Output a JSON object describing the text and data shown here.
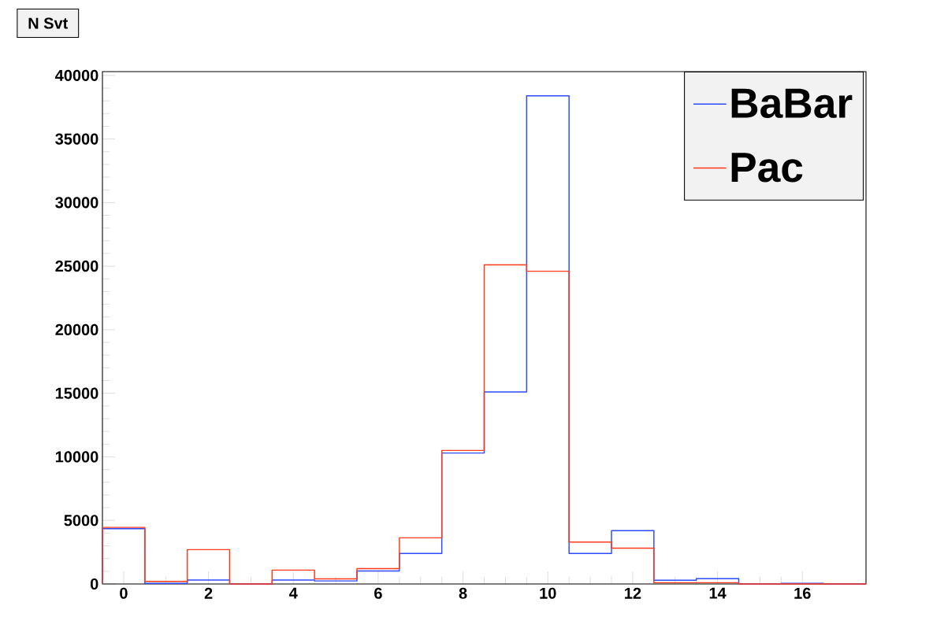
{
  "chart_data": {
    "type": "histogram",
    "title": "N Svt",
    "bins": [
      -0.5,
      0.5,
      1.5,
      2.5,
      3.5,
      4.5,
      5.5,
      6.5,
      7.5,
      8.5,
      9.5,
      10.5,
      11.5,
      12.5,
      13.5,
      14.5,
      15.5,
      16.5,
      17.5
    ],
    "series": [
      {
        "name": "BaBar",
        "color": "#2b4cff",
        "values": [
          4350,
          50,
          310,
          0,
          310,
          240,
          1020,
          2400,
          10300,
          15100,
          38400,
          2400,
          4200,
          300,
          420,
          0,
          50,
          0
        ]
      },
      {
        "name": "Pac",
        "color": "#ff3a1a",
        "values": [
          4450,
          200,
          2700,
          0,
          1090,
          400,
          1210,
          3630,
          10500,
          25100,
          24600,
          3290,
          2820,
          100,
          100,
          0,
          0,
          0
        ]
      }
    ],
    "xlim": [
      -0.5,
      17.5
    ],
    "xticks": [
      0,
      2,
      4,
      6,
      8,
      10,
      12,
      14,
      16
    ],
    "ylim": [
      0,
      40300
    ],
    "yticks": [
      0,
      5000,
      10000,
      15000,
      20000,
      25000,
      30000,
      35000,
      40000
    ],
    "legend": "top right"
  }
}
